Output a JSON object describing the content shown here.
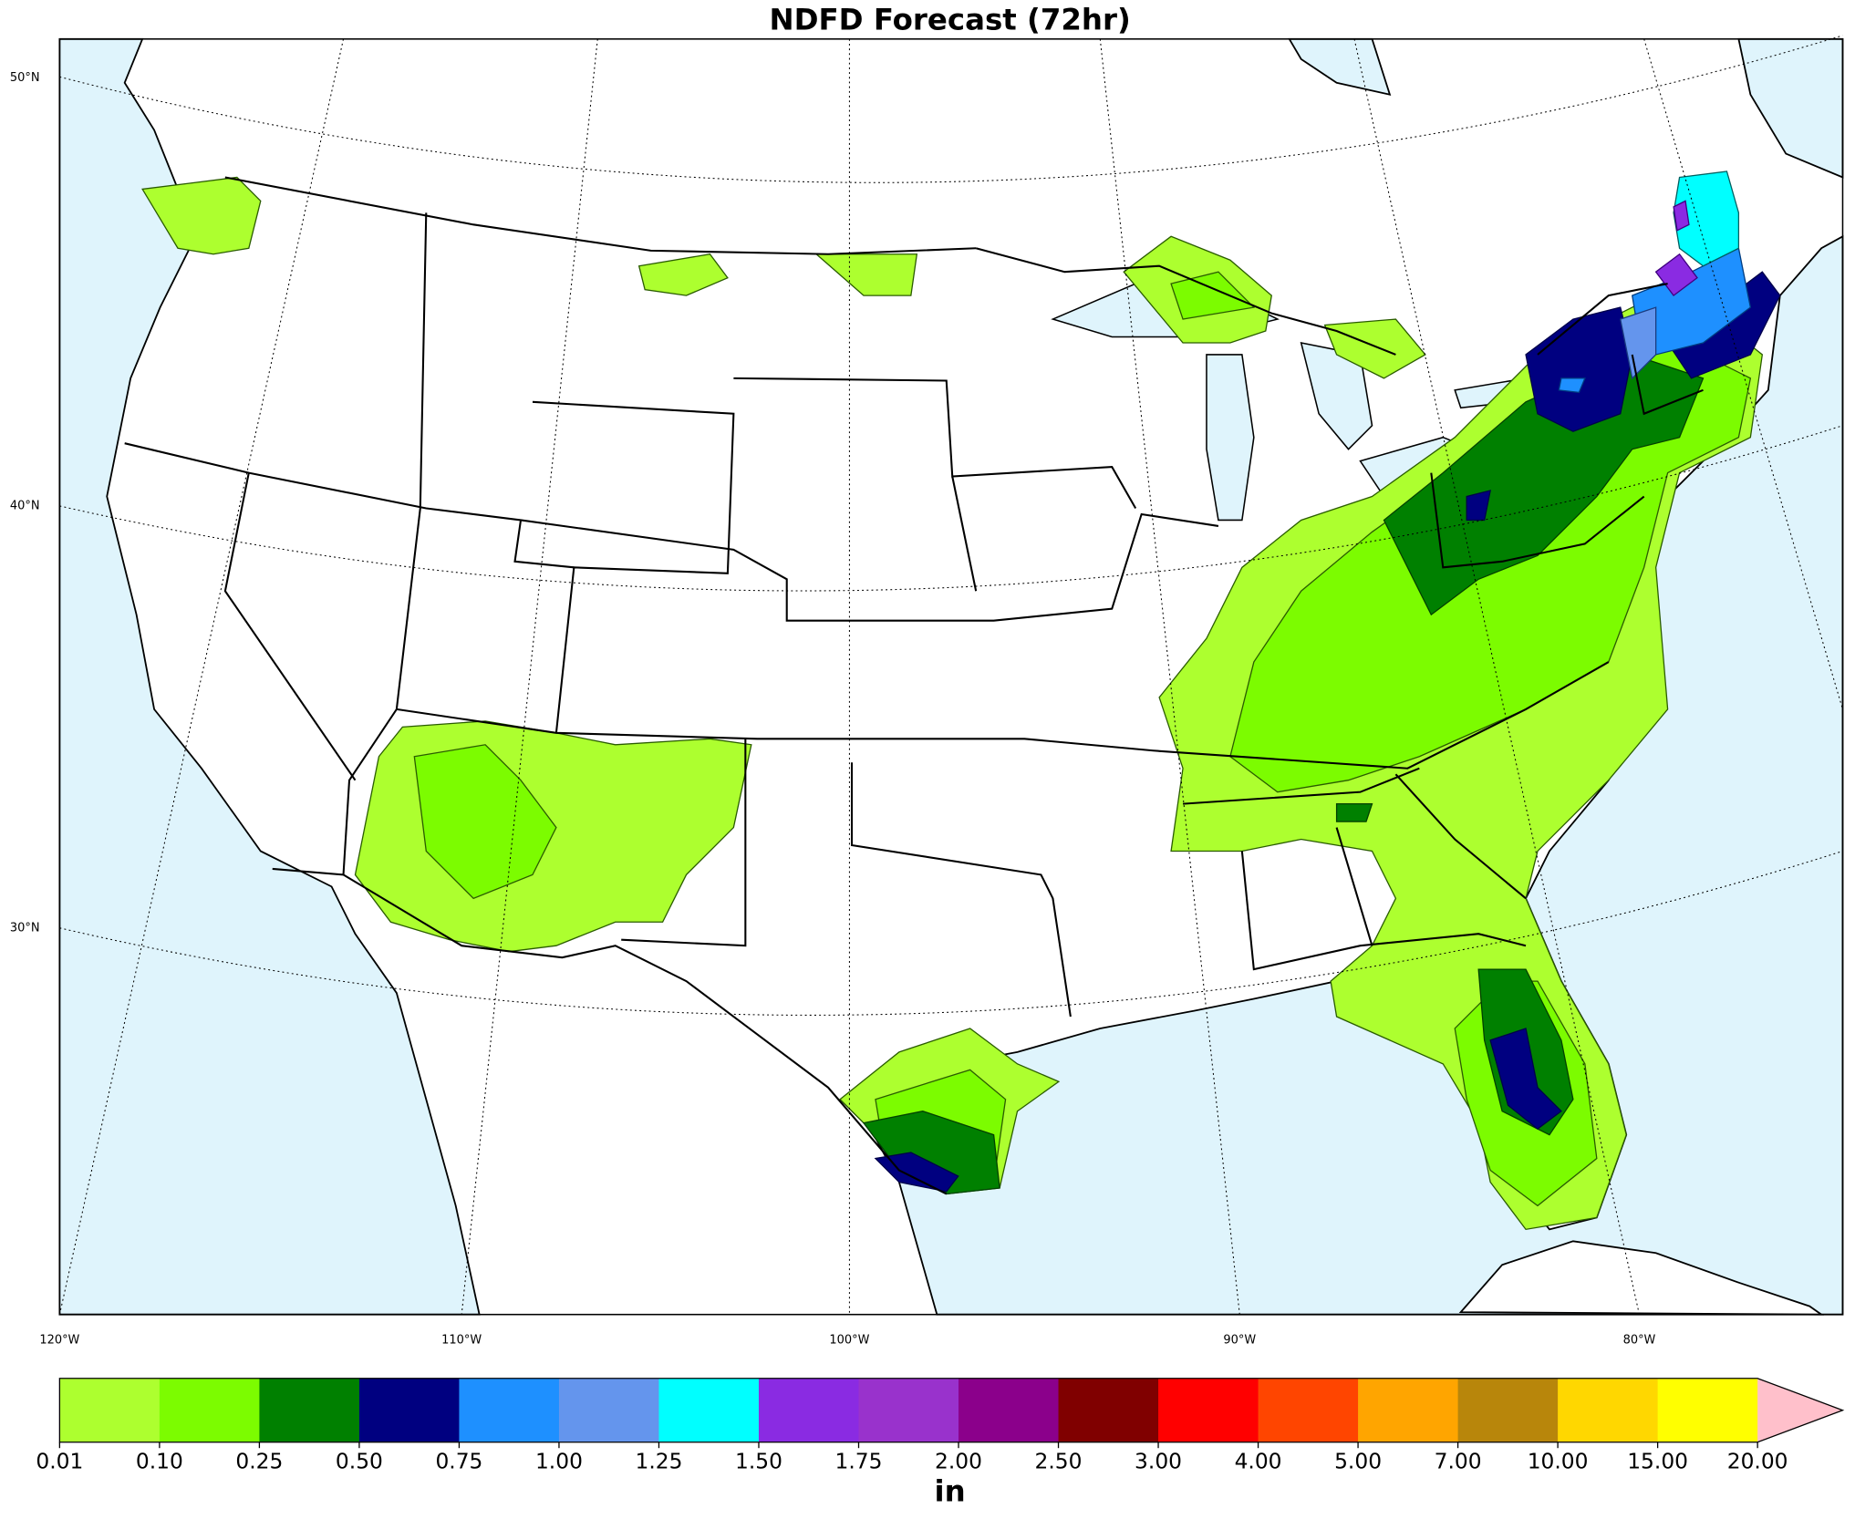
{
  "title": "NDFD Forecast (72hr)",
  "lat_labels": [
    "50°N",
    "40°N",
    "30°N"
  ],
  "lon_labels": [
    "120°W",
    "110°W",
    "100°W",
    "90°W",
    "80°W"
  ],
  "colorbar": {
    "ticks": [
      "0.01",
      "0.10",
      "0.25",
      "0.50",
      "0.75",
      "1.00",
      "1.25",
      "1.50",
      "1.75",
      "2.00",
      "2.50",
      "3.00",
      "4.00",
      "5.00",
      "7.00",
      "10.00",
      "15.00",
      "20.00"
    ],
    "colors": [
      "#adff2f",
      "#7cfc00",
      "#008000",
      "#000080",
      "#1e90ff",
      "#6495ed",
      "#00ffff",
      "#8a2be2",
      "#9932cc",
      "#8b008b",
      "#800000",
      "#ff0000",
      "#ff4500",
      "#ffa500",
      "#b8860b",
      "#ffd700",
      "#ffff00"
    ],
    "extend_color": "#ffc0cb",
    "unit": "in"
  }
}
